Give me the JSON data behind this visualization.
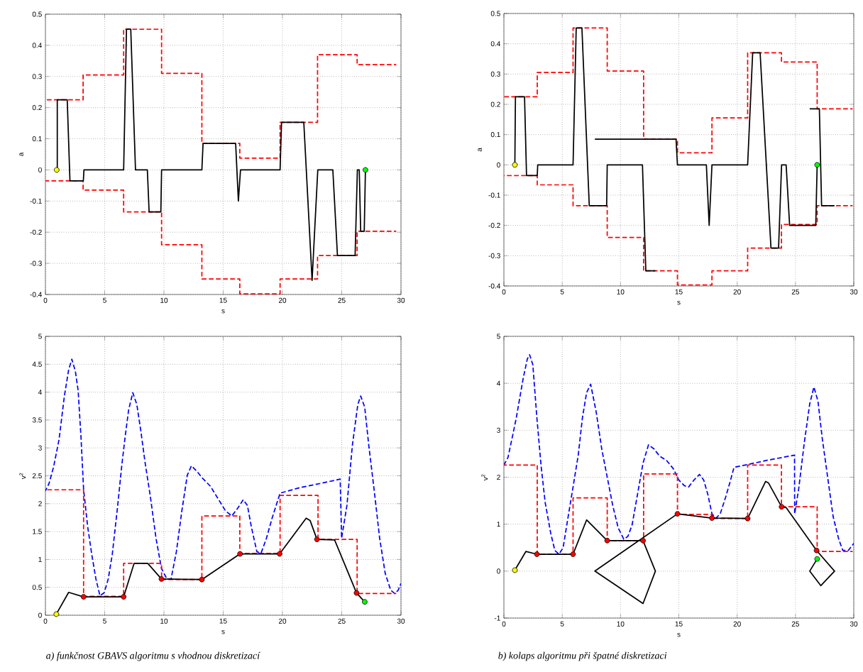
{
  "chart_data": [
    {
      "type": "line",
      "xlabel": "s",
      "ylabel": "a",
      "xlim": [
        0,
        30
      ],
      "ylim": [
        -0.4,
        0.5
      ],
      "xticks": [
        0,
        5,
        10,
        15,
        20,
        25,
        30
      ],
      "yticks": [
        -0.4,
        -0.3,
        -0.2,
        -0.1,
        0,
        0.1,
        0.2,
        0.3,
        0.4,
        0.5
      ],
      "grid": true,
      "series": [
        {
          "type": "step",
          "color": "#ff0000",
          "line_style": "dashed",
          "x": [
            0,
            3.18,
            6.6,
            9.8,
            13.2,
            16.4,
            19.8,
            22.96,
            26.3,
            29.6
          ],
          "values": [
            0.225,
            0.305,
            0.452,
            0.31,
            0.085,
            0.038,
            0.153,
            0.37,
            0.338,
            0.338
          ]
        },
        {
          "type": "step",
          "color": "#ff0000",
          "line_style": "dashed",
          "x": [
            0,
            3.18,
            6.6,
            9.8,
            13.2,
            16.4,
            19.8,
            22.96,
            26.3,
            29.6
          ],
          "values": [
            -0.035,
            -0.065,
            -0.135,
            -0.24,
            -0.35,
            -0.398,
            -0.35,
            -0.275,
            -0.197,
            -0.197
          ]
        },
        {
          "color": "#000000",
          "line_style": "solid",
          "x": [
            0.95,
            1.0,
            1.0,
            1.84,
            2.07,
            3.2,
            3.25,
            6.6,
            6.84,
            7.2,
            7.6,
            8.6,
            8.75,
            9.74,
            9.8,
            13.2,
            13.3,
            16.05,
            16.28,
            16.46,
            19.8,
            19.92,
            21.8,
            22.5,
            22.98,
            24.25,
            24.64,
            26.13,
            26.32,
            26.48,
            26.6,
            26.9,
            27.0
          ],
          "values": [
            0,
            0,
            0.225,
            0.225,
            -0.035,
            -0.035,
            0,
            0,
            0.452,
            0.452,
            0,
            0,
            -0.135,
            -0.135,
            0,
            0,
            0.085,
            0.085,
            -0.1,
            0,
            0,
            0.153,
            0.153,
            -0.355,
            0,
            0,
            -0.275,
            -0.275,
            0,
            0,
            -0.197,
            -0.197,
            0
          ]
        },
        {
          "type": "scatter",
          "color": "#ffff00",
          "marker": "circle",
          "x": [
            0.95
          ],
          "values": [
            0
          ]
        },
        {
          "type": "scatter",
          "color": "#00ff00",
          "marker": "circle",
          "x": [
            27.0
          ],
          "values": [
            0
          ]
        }
      ]
    },
    {
      "type": "line",
      "xlabel": "s",
      "ylabel": "a",
      "xlim": [
        0,
        30
      ],
      "ylim": [
        -0.4,
        0.5
      ],
      "xticks": [
        0,
        5,
        10,
        15,
        20,
        25,
        30
      ],
      "yticks": [
        -0.4,
        -0.3,
        -0.2,
        -0.1,
        0,
        0.1,
        0.2,
        0.3,
        0.4,
        0.5
      ],
      "grid": true,
      "series": [
        {
          "type": "step",
          "color": "#ff0000",
          "line_style": "dashed",
          "x": [
            0,
            2.86,
            5.93,
            8.86,
            11.98,
            14.88,
            17.84,
            20.9,
            23.8,
            26.86,
            29.9
          ],
          "values": [
            0.225,
            0.305,
            0.452,
            0.31,
            0.085,
            0.04,
            0.155,
            0.37,
            0.34,
            0.185,
            0.185
          ]
        },
        {
          "type": "step",
          "color": "#ff0000",
          "line_style": "dashed",
          "x": [
            0,
            2.86,
            5.93,
            8.86,
            11.98,
            14.88,
            17.84,
            20.9,
            23.8,
            26.86,
            29.9
          ],
          "values": [
            -0.035,
            -0.066,
            -0.135,
            -0.24,
            -0.35,
            -0.397,
            -0.35,
            -0.275,
            -0.197,
            -0.135,
            -0.135
          ]
        },
        {
          "color": "#000000",
          "line_style": "solid",
          "x": [
            0.94,
            0.99,
            1.77,
            1.94,
            2.86,
            2.9,
            5.93,
            6.2,
            6.69,
            7.32,
            8.81,
            8.86,
            11.88,
            12.17,
            12.99,
            null,
            7.8,
            14.76,
            14.88,
            17.36,
            17.6,
            17.84,
            20.9,
            21.33,
            21.97,
            22.9,
            23.55,
            23.81,
            24.2,
            24.5,
            26.74,
            26.86,
            null,
            26.22,
            27.05,
            27.24,
            28.35
          ],
          "values": [
            0,
            0.225,
            0.225,
            -0.035,
            -0.035,
            0,
            0,
            0.452,
            0.452,
            -0.135,
            -0.135,
            0,
            0,
            -0.35,
            -0.35,
            null,
            0.085,
            0.085,
            0,
            0,
            -0.2,
            0,
            0,
            0.37,
            0.37,
            -0.275,
            -0.275,
            0,
            0,
            -0.2,
            -0.2,
            0,
            null,
            0.185,
            0.185,
            -0.135,
            -0.135
          ]
        },
        {
          "type": "scatter",
          "color": "#ffff00",
          "marker": "circle",
          "x": [
            0.94
          ],
          "values": [
            0
          ]
        },
        {
          "type": "scatter",
          "color": "#00ff00",
          "marker": "circle",
          "x": [
            26.86
          ],
          "values": [
            0
          ]
        }
      ]
    },
    {
      "type": "line",
      "xlabel": "s",
      "ylabel": "v$^{2}$",
      "xlim": [
        0,
        30
      ],
      "ylim": [
        0,
        5
      ],
      "xticks": [
        0,
        5,
        10,
        15,
        20,
        25,
        30
      ],
      "yticks": [
        0,
        0.5,
        1,
        1.5,
        2,
        2.5,
        3,
        3.5,
        4,
        4.5,
        5
      ],
      "grid": true,
      "annotations": [
        "a) funkčnost GBAVS algoritmu s vhodnou diskretizací"
      ],
      "series": [
        {
          "color": "#0000ff",
          "line_style": "dashed",
          "x": [
            0,
            0.3,
            0.69,
            1.15,
            1.6,
            1.96,
            2.23,
            2.53,
            2.76,
            3.0,
            3.22,
            3.57,
            3.91,
            4.26,
            4.6,
            4.95,
            5.3,
            5.64,
            6.1,
            6.45,
            6.75,
            7.02,
            7.37,
            7.71,
            8.06,
            8.4,
            8.86,
            9.33,
            9.79,
            10.25,
            10.6,
            11.05,
            11.51,
            11.97,
            12.32,
            12.78,
            13.24,
            13.93,
            14.62,
            15.2,
            15.73,
            16.23,
            16.69,
            17.04,
            17.38,
            17.84,
            18.19,
            18.65,
            19.11,
            19.8,
            21.53,
            23.14,
            24.87,
            24.99,
            25.44,
            25.9,
            26.36,
            26.6,
            26.94,
            27.28,
            27.75,
            28.2,
            28.67,
            29.13,
            29.47,
            29.77,
            30
          ],
          "values": [
            2.23,
            2.36,
            2.66,
            3.15,
            3.93,
            4.4,
            4.59,
            4.37,
            4.03,
            3.2,
            2.26,
            1.58,
            1.09,
            0.65,
            0.35,
            0.4,
            0.65,
            1.09,
            1.97,
            2.7,
            3.24,
            3.68,
            3.99,
            3.78,
            3.29,
            2.75,
            2.12,
            1.38,
            0.84,
            0.65,
            0.65,
            1.14,
            1.87,
            2.51,
            2.68,
            2.58,
            2.46,
            2.31,
            2.07,
            1.87,
            1.78,
            1.92,
            2.07,
            1.97,
            1.58,
            1.14,
            1.11,
            1.38,
            1.73,
            2.19,
            2.29,
            2.36,
            2.44,
            1.38,
            1.97,
            3.05,
            3.78,
            3.93,
            3.73,
            3.05,
            2.22,
            1.38,
            0.75,
            0.45,
            0.39,
            0.45,
            0.57
          ]
        },
        {
          "type": "step",
          "color": "#ff0000",
          "line_style": "dashed",
          "x": [
            0,
            3.22,
            6.6,
            9.8,
            13.2,
            16.4,
            19.8,
            23.0,
            26.3,
            29.6
          ],
          "values": [
            2.25,
            0.34,
            0.93,
            0.64,
            1.78,
            1.11,
            2.15,
            1.36,
            0.39,
            0.39
          ]
        },
        {
          "color": "#000000",
          "line_style": "solid",
          "x": [
            0.92,
            1.96,
            3.22,
            6.6,
            7.48,
            8.63,
            9.79,
            13.2,
            16.42,
            19.76,
            22.0,
            22.33,
            22.91,
            24.4,
            26.25,
            26.94
          ],
          "values": [
            0.02,
            0.41,
            0.33,
            0.33,
            0.93,
            0.93,
            0.65,
            0.64,
            1.1,
            1.1,
            1.74,
            1.7,
            1.36,
            1.35,
            0.4,
            0.24
          ]
        },
        {
          "type": "scatter",
          "color": "#ff0000",
          "marker": "circle",
          "x": [
            3.22,
            6.6,
            9.79,
            13.2,
            16.42,
            19.76,
            22.91,
            26.25
          ],
          "values": [
            0.33,
            0.33,
            0.65,
            0.64,
            1.1,
            1.1,
            1.36,
            0.4
          ]
        },
        {
          "type": "scatter",
          "color": "#ffff00",
          "marker": "circle",
          "x": [
            0.92
          ],
          "values": [
            0.02
          ]
        },
        {
          "type": "scatter",
          "color": "#00ff00",
          "marker": "circle",
          "x": [
            26.94
          ],
          "values": [
            0.24
          ]
        }
      ]
    },
    {
      "type": "line",
      "xlabel": "s",
      "ylabel": "v$^{2}$",
      "xlim": [
        0,
        30
      ],
      "ylim": [
        -1,
        5
      ],
      "xticks": [
        0,
        5,
        10,
        15,
        20,
        25,
        30
      ],
      "yticks": [
        -1,
        0,
        1,
        2,
        3,
        4,
        5
      ],
      "grid": true,
      "annotations": [
        "b) kolaps algoritmu při špatné diskretizaci"
      ],
      "series": [
        {
          "color": "#0000ff",
          "line_style": "dashed",
          "x": [
            0,
            0.35,
            0.71,
            1.06,
            1.65,
            2.01,
            2.2,
            2.48,
            2.83,
            3.19,
            3.54,
            4.02,
            4.37,
            4.72,
            5.08,
            5.43,
            5.91,
            6.38,
            6.73,
            7.09,
            7.44,
            7.92,
            8.39,
            8.86,
            9.33,
            9.8,
            10.28,
            10.63,
            10.99,
            11.46,
            11.93,
            12.4,
            12.88,
            13.35,
            13.94,
            14.53,
            15.0,
            15.47,
            15.83,
            16.3,
            16.77,
            17.13,
            17.48,
            17.84,
            18.19,
            18.55,
            19.02,
            19.37,
            19.73,
            20.9,
            22.56,
            24.92,
            24.93,
            25.28,
            25.75,
            26.22,
            26.58,
            26.93,
            27.29,
            27.76,
            28.23,
            28.71,
            29.06,
            29.53,
            30
          ],
          "values": [
            2.26,
            2.42,
            2.84,
            3.26,
            4.1,
            4.52,
            4.61,
            4.4,
            3.26,
            2.24,
            1.46,
            0.8,
            0.44,
            0.36,
            0.5,
            1.04,
            1.76,
            2.48,
            3.26,
            3.8,
            3.98,
            3.38,
            2.6,
            2.0,
            1.4,
            0.92,
            0.68,
            0.74,
            0.98,
            1.64,
            2.3,
            2.69,
            2.6,
            2.45,
            2.36,
            2.18,
            1.94,
            1.82,
            1.79,
            1.94,
            2.06,
            1.94,
            1.64,
            1.22,
            1.13,
            1.22,
            1.58,
            1.88,
            2.21,
            2.27,
            2.36,
            2.47,
            1.22,
            1.76,
            2.72,
            3.56,
            3.92,
            3.62,
            2.84,
            2.0,
            1.16,
            0.68,
            0.44,
            0.44,
            0.59
          ]
        },
        {
          "type": "step",
          "color": "#ff0000",
          "line_style": "dashed",
          "x": [
            0,
            2.86,
            5.93,
            8.86,
            11.98,
            14.88,
            17.84,
            20.9,
            23.8,
            26.86,
            29.9
          ],
          "values": [
            2.26,
            0.36,
            1.56,
            0.65,
            2.07,
            1.21,
            1.12,
            2.26,
            1.37,
            0.42,
            0.42
          ]
        },
        {
          "color": "#000000",
          "line_style": "solid",
          "x": [
            0.94,
            1.89,
            2.83,
            5.93,
            7.09,
            8.86,
            11.93,
            12.99,
            11.93,
            7.8,
            14.88,
            17.84,
            20.9,
            22.44,
            22.68,
            23.81,
            24.21,
            26.81,
            28.35,
            27.17,
            26.22,
            26.86
          ],
          "values": [
            0.02,
            0.42,
            0.36,
            0.36,
            1.09,
            0.65,
            0.65,
            0,
            -0.69,
            0,
            1.22,
            1.13,
            1.12,
            1.91,
            1.88,
            1.37,
            1.35,
            0.44,
            0,
            -0.31,
            0,
            0.26
          ]
        },
        {
          "type": "scatter",
          "color": "#ff0000",
          "marker": "circle",
          "x": [
            2.83,
            5.93,
            8.86,
            11.93,
            14.88,
            17.84,
            20.9,
            23.81,
            26.81
          ],
          "values": [
            0.36,
            0.36,
            0.65,
            0.65,
            1.22,
            1.13,
            1.12,
            1.37,
            0.44
          ]
        },
        {
          "type": "scatter",
          "color": "#ffff00",
          "marker": "circle",
          "x": [
            0.94
          ],
          "values": [
            0.02
          ]
        },
        {
          "type": "scatter",
          "color": "#00ff00",
          "marker": "circle",
          "x": [
            26.86
          ],
          "values": [
            0.26
          ]
        }
      ]
    }
  ]
}
